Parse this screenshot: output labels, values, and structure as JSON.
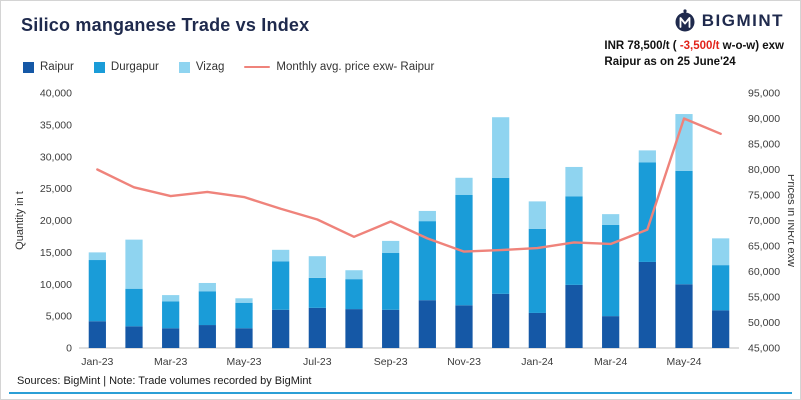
{
  "header": {
    "title": "Silico manganese Trade vs Index",
    "brand": "BIGMINT",
    "price_note": {
      "line1_prefix": "INR 78,500/t (",
      "line1_highlight": " -3,500/t",
      "line1_suffix": " w-o-w) exw",
      "line2": "Raipur as on 25 June'24"
    }
  },
  "legend": [
    {
      "label": "Raipur",
      "color": "#1558a6",
      "type": "square"
    },
    {
      "label": "Durgapur",
      "color": "#1a9cd8",
      "type": "square"
    },
    {
      "label": "Vizag",
      "color": "#8fd4f0",
      "type": "square"
    },
    {
      "label": "Monthly avg. price exw- Raipur",
      "color": "#ef837b",
      "type": "line"
    }
  ],
  "footer": {
    "text": "Sources: BigMint | Note: Trade volumes recorded by BigMint"
  },
  "colors": {
    "title_navy": "#1f2a4d",
    "raipur": "#1558a6",
    "durgapur": "#1a9cd8",
    "vizag": "#8fd4f0",
    "price_line": "#ef837b",
    "negative_red": "#e2231a",
    "axis_text": "#3c3c3c",
    "baseline": "#bdbdbd",
    "bottom_accent": "#2b9fd6"
  },
  "chart_data": {
    "type": "bar",
    "subtype": "stacked-bar-with-line",
    "title": "Silico manganese Trade vs Index",
    "categories": [
      "Jan-23",
      "Feb-23",
      "Mar-23",
      "Apr-23",
      "May-23",
      "Jun-23",
      "Jul-23",
      "Aug-23",
      "Sep-23",
      "Oct-23",
      "Nov-23",
      "Dec-23",
      "Jan-24",
      "Feb-24",
      "Mar-24",
      "Apr-24",
      "May-24",
      "Jun-24"
    ],
    "x_tick_every": 2,
    "series": [
      {
        "name": "Raipur",
        "type": "bar",
        "axis": "left",
        "color": "#1558a6",
        "values": [
          4200,
          3400,
          3100,
          3600,
          3100,
          6000,
          6300,
          6100,
          6000,
          7500,
          6700,
          8500,
          5500,
          9900,
          5000,
          13500,
          10000,
          5900
        ]
      },
      {
        "name": "Durgapur",
        "type": "bar",
        "axis": "left",
        "color": "#1a9cd8",
        "values": [
          9600,
          5900,
          4200,
          5300,
          4000,
          7600,
          4700,
          4700,
          8900,
          12400,
          17300,
          18200,
          13200,
          13900,
          14300,
          15600,
          17800,
          7100
        ]
      },
      {
        "name": "Vizag",
        "type": "bar",
        "axis": "left",
        "color": "#8fd4f0",
        "values": [
          1200,
          7700,
          1000,
          1300,
          700,
          1800,
          3400,
          1400,
          1900,
          1600,
          2700,
          9500,
          4300,
          4600,
          1700,
          1900,
          8900,
          4200
        ]
      },
      {
        "name": "Monthly avg. price exw- Raipur",
        "type": "line",
        "axis": "right",
        "color": "#ef837b",
        "values": [
          80000,
          76500,
          74800,
          75600,
          74600,
          72300,
          70200,
          66800,
          69800,
          66500,
          63900,
          64200,
          64600,
          65700,
          65400,
          68200,
          90000,
          87000
        ]
      }
    ],
    "left_axis": {
      "label": "Quantity in t",
      "min": 0,
      "max": 40000,
      "step": 5000
    },
    "right_axis": {
      "label": "Prices in INR/t exw",
      "min": 45000,
      "max": 95000,
      "step": 5000
    },
    "grid": false,
    "legend_position": "top-left"
  }
}
